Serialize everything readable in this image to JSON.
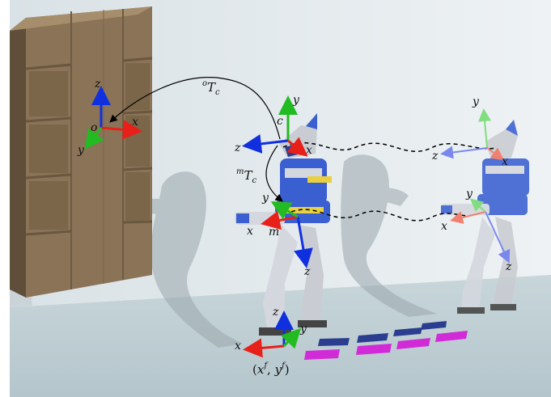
{
  "colors": {
    "x_axis": "#e8201a",
    "y_axis": "#22bb22",
    "z_axis": "#1030e0",
    "cabinet": "#8a7356",
    "robot_blue": "#3a5fd0",
    "robot_gray": "#b8bcc4",
    "footstep_dark": "#2a3d8f",
    "footstep_magenta": "#d12bd8",
    "wall": "#dfe6ea",
    "floor": "#c4d2d6"
  },
  "frames": {
    "object": {
      "origin": "o",
      "x": "x",
      "y": "y",
      "z": "z"
    },
    "camera": {
      "origin": "c",
      "x": "x",
      "y": "y",
      "z": "z"
    },
    "camera_ghost": {
      "x": "x",
      "y": "y",
      "z": "z"
    },
    "waist": {
      "origin": "m",
      "x": "x",
      "y": "y",
      "z": "z"
    },
    "waist_ghost": {
      "x": "x",
      "y": "y",
      "z": "z"
    },
    "foot": {
      "x": "x",
      "y": "y",
      "z": "z"
    }
  },
  "transforms": {
    "object_camera": {
      "sup": "o",
      "base": "T",
      "sub": "c"
    },
    "waist_camera": {
      "sup": "m",
      "base": "T",
      "sub": "c"
    }
  },
  "foot_position": {
    "open": "(",
    "x": "x",
    "x_sup": "f",
    "sep": ", ",
    "y": "y",
    "y_sup": "f",
    "close": ")"
  }
}
